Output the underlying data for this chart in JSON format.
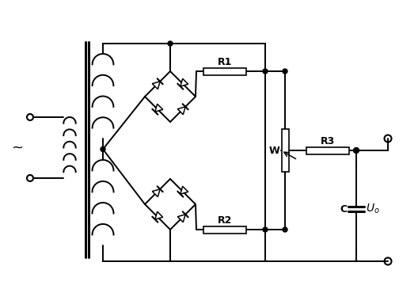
{
  "bg_color": "#ffffff",
  "line_color": "#000000",
  "fig_width": 5.28,
  "fig_height": 3.84,
  "dpi": 100,
  "labels": {
    "tilde": "~",
    "R1": "R1",
    "R2": "R2",
    "R3": "R3",
    "W": "W",
    "C": "C",
    "Uo": "$U_o$"
  }
}
